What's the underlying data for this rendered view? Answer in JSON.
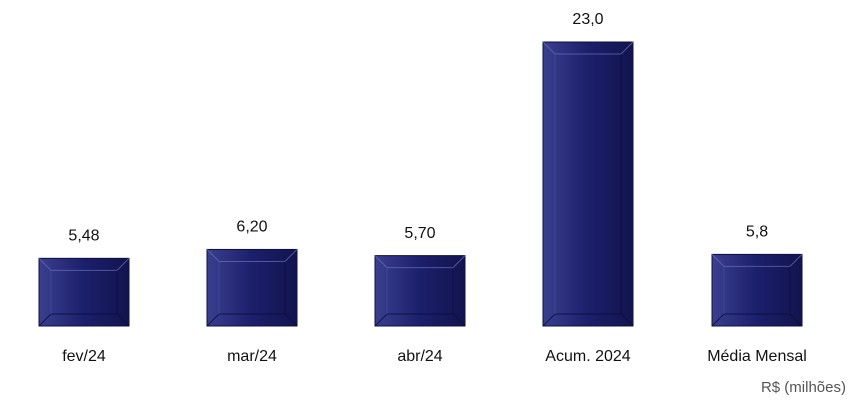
{
  "chart_data": {
    "type": "bar",
    "categories": [
      "fev/24",
      "mar/24",
      "abr/24",
      "Acum. 2024",
      "Média Mensal"
    ],
    "values": [
      5.48,
      6.2,
      5.7,
      23,
      5.8
    ],
    "value_labels": [
      "5,48",
      "6,20",
      "5,70",
      "23,0",
      "5,8"
    ],
    "color": "#1c1f6b",
    "note": "R$ (milhões)"
  }
}
